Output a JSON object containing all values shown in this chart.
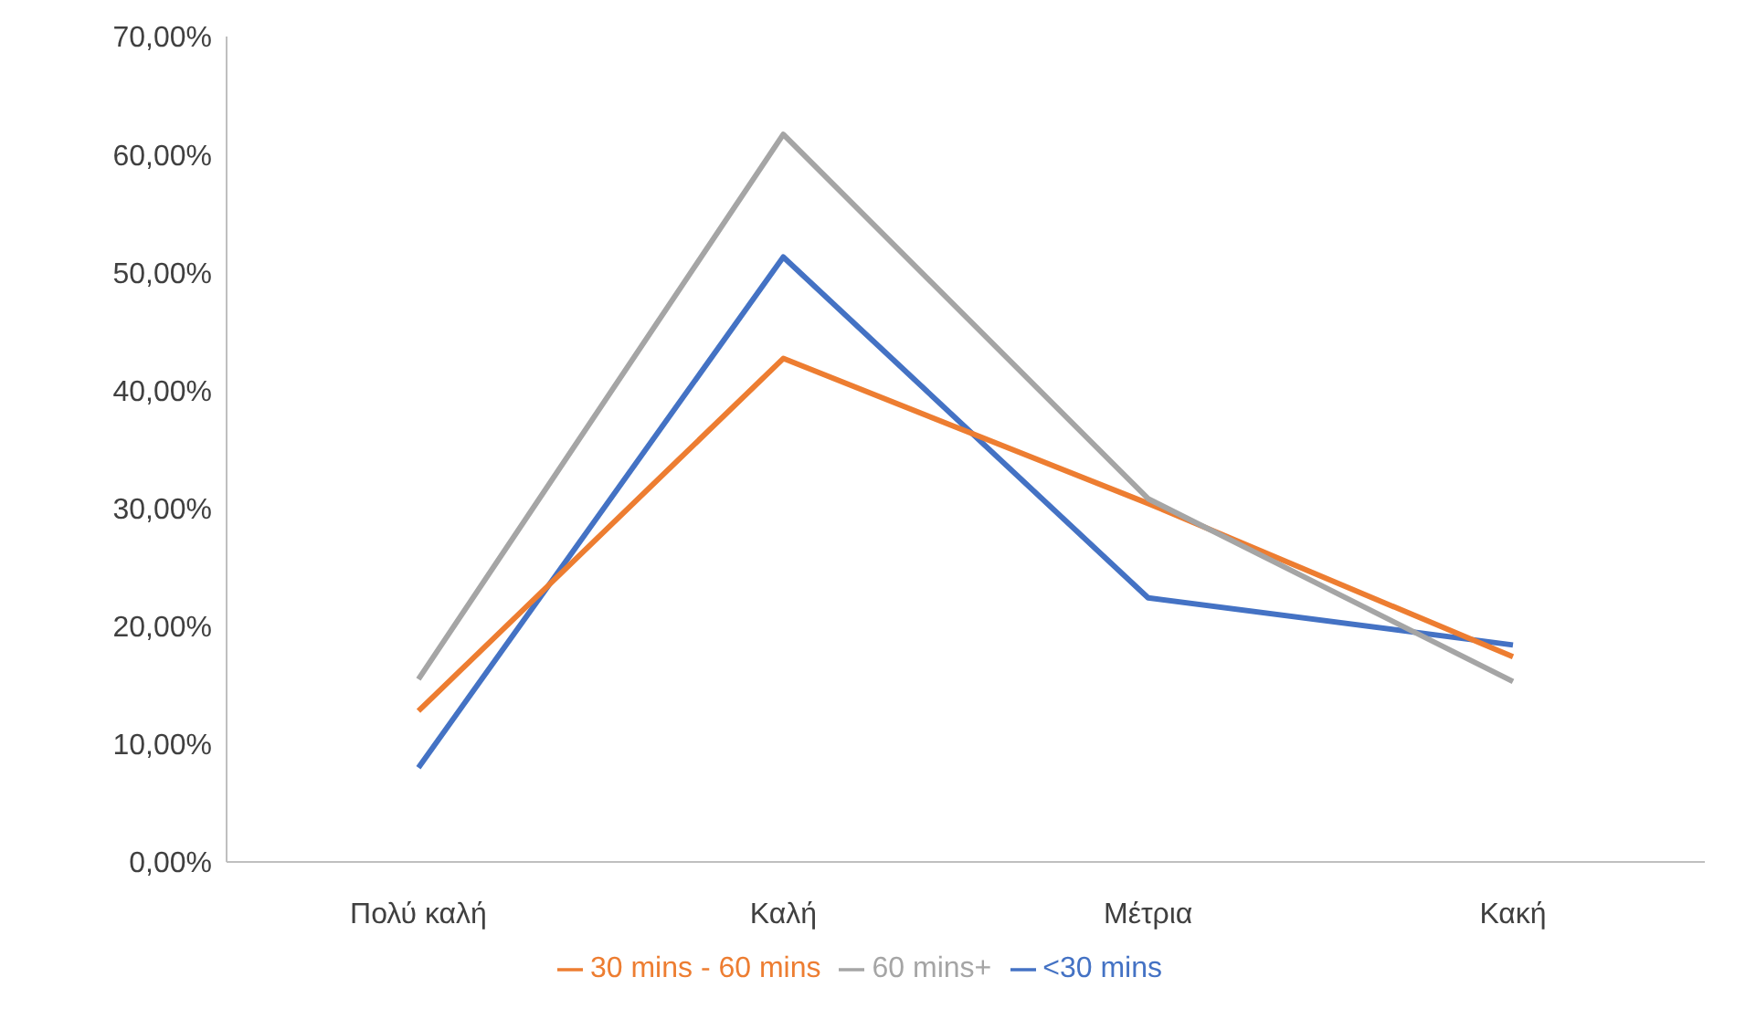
{
  "chart_data": {
    "type": "line",
    "categories": [
      "Πολύ καλή",
      "Καλή",
      "Μέτρια",
      "Κακή"
    ],
    "series": [
      {
        "name": "<30 mins",
        "color": "#4472c4",
        "values": [
          8.0,
          51.3,
          22.4,
          18.4
        ]
      },
      {
        "name": "30 mins - 60 mins",
        "color": "#ed7d31",
        "values": [
          12.8,
          42.7,
          30.4,
          17.4
        ]
      },
      {
        "name": "60 mins+",
        "color": "#a5a5a5",
        "values": [
          15.5,
          61.7,
          30.8,
          15.3
        ]
      }
    ],
    "ylim": [
      0,
      70
    ],
    "yticks": [
      {
        "value": 0,
        "label": "0,00%"
      },
      {
        "value": 10,
        "label": "10,00%"
      },
      {
        "value": 20,
        "label": "20,00%"
      },
      {
        "value": 30,
        "label": "30,00%"
      },
      {
        "value": 40,
        "label": "40,00%"
      },
      {
        "value": 50,
        "label": "50,00%"
      },
      {
        "value": 60,
        "label": "60,00%"
      },
      {
        "value": 70,
        "label": "70,00%"
      }
    ],
    "grid": false,
    "legend": "bottom",
    "marker": "none",
    "line_style": "solid"
  }
}
